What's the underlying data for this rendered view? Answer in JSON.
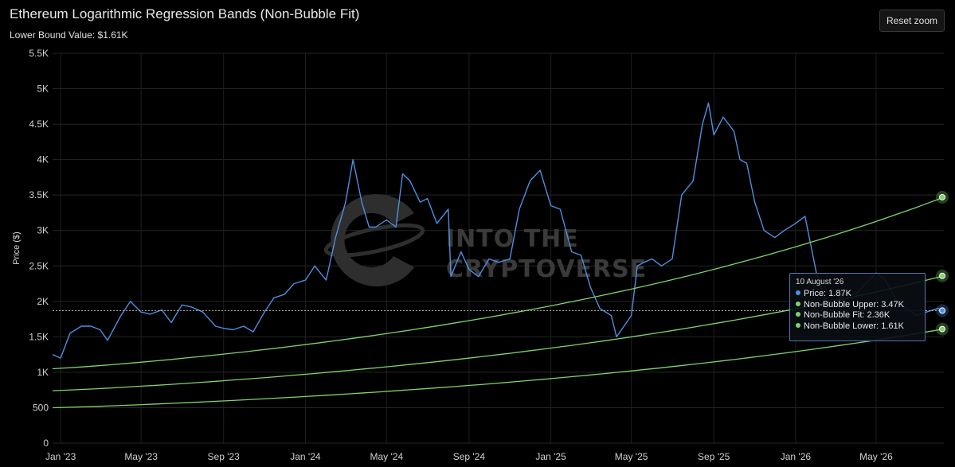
{
  "header": {
    "title": "Ethereum Logarithmic Regression Bands (Non-Bubble Fit)",
    "subtitle": "Lower Bound Value: $1.61K",
    "reset_label": "Reset zoom"
  },
  "watermark": {
    "line1": "INTO THE",
    "line2": "CRYPTOVERSE"
  },
  "colors": {
    "price": "#4f8fe0",
    "bands": "#7fd46a",
    "background": "#000000",
    "grid": "#262626"
  },
  "tooltip": {
    "date": "10 August '26",
    "rows": [
      {
        "label": "Price: 1.87K",
        "color": "#4f8fe0"
      },
      {
        "label": "Non-Bubble Upper: 3.47K",
        "color": "#7fd46a"
      },
      {
        "label": "Non-Bubble Fit: 2.36K",
        "color": "#7fd46a"
      },
      {
        "label": "Non-Bubble Lower: 1.61K",
        "color": "#7fd46a"
      }
    ]
  },
  "chart_data": {
    "type": "line",
    "title": "Ethereum Logarithmic Regression Bands (Non-Bubble Fit)",
    "ylabel": "Price ($)",
    "ylim": [
      0,
      5500
    ],
    "yticks": [
      0,
      500,
      1000,
      1500,
      2000,
      2500,
      3000,
      3500,
      4000,
      4500,
      5000,
      5500
    ],
    "ytick_labels": [
      "0",
      "500",
      "1K",
      "1.5K",
      "2K",
      "2.5K",
      "3K",
      "3.5K",
      "4K",
      "4.5K",
      "5K",
      "5.5K"
    ],
    "xlim": [
      "2022-12-20",
      "2026-08-10"
    ],
    "xticks": [
      "2023-01-01",
      "2023-05-01",
      "2023-09-01",
      "2024-01-01",
      "2024-05-01",
      "2024-09-01",
      "2025-01-01",
      "2025-05-01",
      "2025-09-01",
      "2026-01-01",
      "2026-05-01"
    ],
    "xtick_labels": [
      "Jan '23",
      "May '23",
      "Sep '23",
      "Jan '24",
      "May '24",
      "Sep '24",
      "Jan '25",
      "May '25",
      "Sep '25",
      "Jan '26",
      "May '26"
    ],
    "grid": true,
    "legend": "none",
    "series": [
      {
        "name": "Price",
        "x": [
          "2022-12-20",
          "2023-01-01",
          "2023-01-15",
          "2023-02-01",
          "2023-02-15",
          "2023-03-01",
          "2023-03-12",
          "2023-04-01",
          "2023-04-15",
          "2023-05-01",
          "2023-05-15",
          "2023-06-01",
          "2023-06-15",
          "2023-07-01",
          "2023-07-15",
          "2023-08-01",
          "2023-08-20",
          "2023-09-01",
          "2023-09-15",
          "2023-10-01",
          "2023-10-15",
          "2023-11-01",
          "2023-11-15",
          "2023-12-01",
          "2023-12-15",
          "2024-01-01",
          "2024-01-15",
          "2024-02-01",
          "2024-02-15",
          "2024-03-01",
          "2024-03-12",
          "2024-03-25",
          "2024-04-05",
          "2024-04-15",
          "2024-05-01",
          "2024-05-15",
          "2024-05-25",
          "2024-06-05",
          "2024-06-20",
          "2024-07-01",
          "2024-07-15",
          "2024-08-01",
          "2024-08-05",
          "2024-08-20",
          "2024-09-01",
          "2024-09-15",
          "2024-10-01",
          "2024-10-15",
          "2024-11-01",
          "2024-11-15",
          "2024-12-01",
          "2024-12-16",
          "2025-01-01",
          "2025-01-15",
          "2025-02-01",
          "2025-02-15",
          "2025-03-01",
          "2025-03-15",
          "2025-04-01",
          "2025-04-09",
          "2025-04-20",
          "2025-05-01",
          "2025-05-10",
          "2025-05-20",
          "2025-06-01",
          "2025-06-15",
          "2025-07-01",
          "2025-07-15",
          "2025-08-01",
          "2025-08-15",
          "2025-08-24",
          "2025-09-01",
          "2025-09-15",
          "2025-10-01",
          "2025-10-10",
          "2025-10-20",
          "2025-11-01",
          "2025-11-15",
          "2025-12-01",
          "2025-12-15",
          "2026-01-01",
          "2026-01-15",
          "2026-02-01",
          "2026-02-15",
          "2026-03-01",
          "2026-03-15",
          "2026-04-01",
          "2026-04-15",
          "2026-05-01",
          "2026-05-15",
          "2026-06-01",
          "2026-06-15",
          "2026-07-01",
          "2026-07-15",
          "2026-08-01",
          "2026-08-10"
        ],
        "y": [
          1250,
          1200,
          1550,
          1650,
          1650,
          1600,
          1450,
          1800,
          2000,
          1850,
          1820,
          1880,
          1700,
          1950,
          1920,
          1850,
          1650,
          1620,
          1600,
          1650,
          1570,
          1850,
          2050,
          2100,
          2250,
          2300,
          2500,
          2300,
          2900,
          3400,
          4000,
          3400,
          3050,
          3050,
          3150,
          3050,
          3800,
          3700,
          3400,
          3450,
          3100,
          3300,
          2350,
          2700,
          2450,
          2350,
          2600,
          2550,
          2600,
          3300,
          3700,
          3850,
          3350,
          3300,
          2700,
          2650,
          2200,
          1900,
          1800,
          1500,
          1650,
          1800,
          2500,
          2550,
          2600,
          2500,
          2600,
          3500,
          3700,
          4500,
          4800,
          4350,
          4600,
          4400,
          4000,
          3950,
          3400,
          3000,
          2900,
          3000,
          3100,
          3200,
          2400,
          2000,
          2000,
          2100,
          2100,
          2250,
          2400,
          2300,
          2000,
          1900,
          1800,
          1850,
          1900,
          1870
        ]
      },
      {
        "name": "Non-Bubble Upper",
        "x": [
          "2022-12-20",
          "2026-08-10"
        ],
        "y": [
          1050,
          3470
        ]
      },
      {
        "name": "Non-Bubble Fit",
        "x": [
          "2022-12-20",
          "2026-08-10"
        ],
        "y": [
          740,
          2360
        ]
      },
      {
        "name": "Non-Bubble Lower",
        "x": [
          "2022-12-20",
          "2026-08-10"
        ],
        "y": [
          500,
          1610
        ]
      }
    ]
  }
}
